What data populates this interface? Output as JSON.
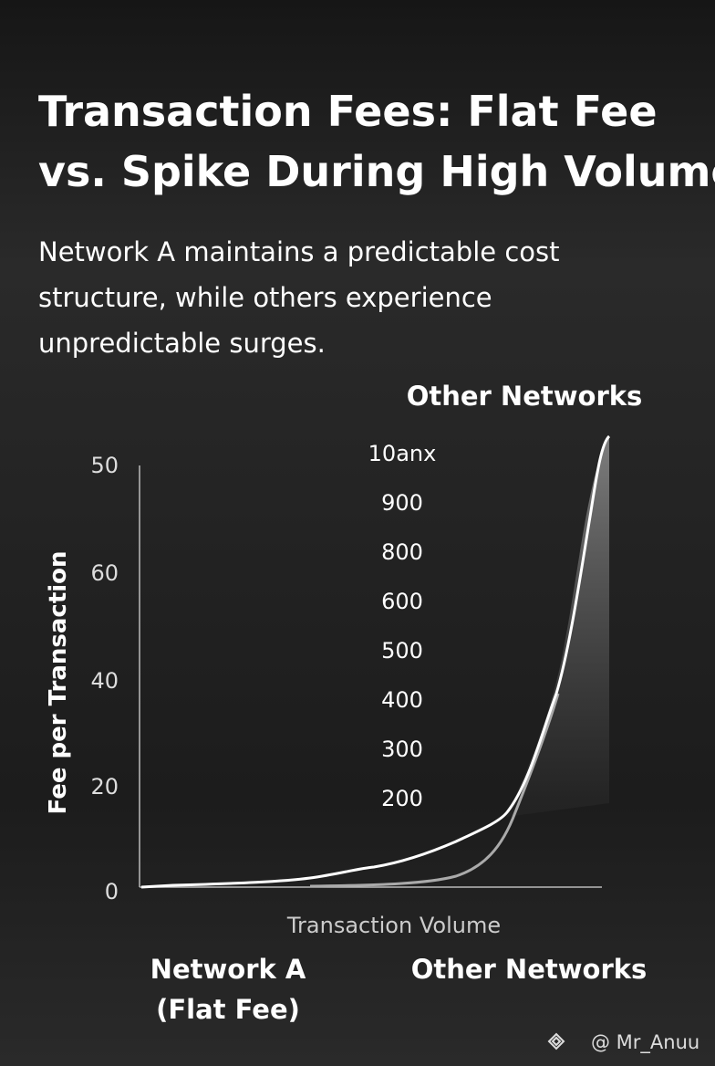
{
  "title": [
    "Transaction Fees: Flat Fee",
    "vs. Spike During High Volume"
  ],
  "subtitle": [
    "Network A maintains a predictable cost",
    "structure, while others experience",
    "unpredictable surges."
  ],
  "top_label": "Other Networks",
  "left_axis_labels": [
    "50",
    "60",
    "40",
    "20",
    "0"
  ],
  "middle_axis_labels": [
    "10anx",
    "900",
    "800",
    "600",
    "500",
    "400",
    "300",
    "200"
  ],
  "y_axis_label": "Fee per Transaction",
  "x_axis_label": "Transaction Volume",
  "bottom_left_label": [
    "Network A",
    "(Flat Fee)"
  ],
  "bottom_right_label": "Other Networks",
  "watermark": "@ Mr_Anuu"
}
